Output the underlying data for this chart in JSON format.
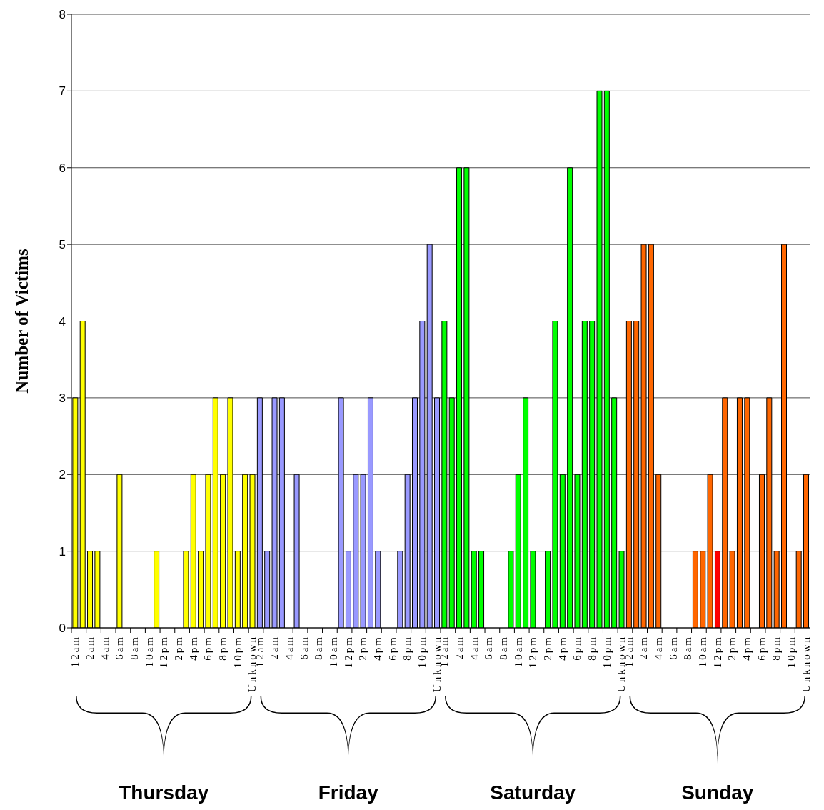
{
  "chart_data": {
    "type": "bar",
    "ylabel": "Number of Victims",
    "categories": [
      "12am",
      null,
      "2am",
      null,
      "4am",
      null,
      "6am",
      null,
      "8am",
      null,
      "10am",
      null,
      "12pm",
      null,
      "2pm",
      null,
      "4pm",
      null,
      "6pm",
      null,
      "8pm",
      null,
      "10pm",
      null,
      "Unknown",
      "12am",
      null,
      "2am",
      null,
      "4am",
      null,
      "6am",
      null,
      "8am",
      null,
      "10am",
      null,
      "12pm",
      null,
      "2pm",
      null,
      "4pm",
      null,
      "6pm",
      null,
      "8pm",
      null,
      "10pm",
      null,
      "Unknown",
      "12am",
      null,
      "2am",
      null,
      "4am",
      null,
      "6am",
      null,
      "8am",
      null,
      "10am",
      null,
      "12pm",
      null,
      "2pm",
      null,
      "4pm",
      null,
      "6pm",
      null,
      "8pm",
      null,
      "10pm",
      null,
      "Unknown",
      "12am",
      null,
      "2am",
      null,
      "4am",
      null,
      "6am",
      null,
      "8am",
      null,
      "10am",
      null,
      "12pm",
      null,
      "2pm",
      null,
      "4pm",
      null,
      "6pm",
      null,
      "8pm",
      null,
      "10pm",
      null,
      "Unknown"
    ],
    "values": [
      3,
      4,
      1,
      1,
      0,
      0,
      2,
      0,
      0,
      0,
      0,
      1,
      0,
      0,
      0,
      1,
      2,
      1,
      2,
      3,
      2,
      3,
      1,
      2,
      2,
      3,
      1,
      3,
      3,
      0,
      2,
      0,
      0,
      0,
      0,
      0,
      3,
      1,
      2,
      2,
      3,
      1,
      0,
      0,
      1,
      2,
      3,
      4,
      5,
      3,
      4,
      3,
      6,
      6,
      1,
      1,
      0,
      0,
      0,
      1,
      2,
      3,
      1,
      0,
      1,
      4,
      2,
      6,
      2,
      4,
      4,
      7,
      7,
      3,
      1,
      4,
      4,
      5,
      5,
      2,
      0,
      0,
      0,
      0,
      1,
      1,
      2,
      1,
      3,
      1,
      3,
      3,
      0,
      2,
      3,
      1,
      5,
      0,
      1,
      2
    ],
    "colors": [
      "#ffff00",
      "#ffff00",
      "#ffff00",
      "#ffff00",
      "#ffff00",
      "#ffff00",
      "#ffff00",
      "#ffff00",
      "#ffff00",
      "#ffff00",
      "#ffff00",
      "#ffff00",
      "#ffff00",
      "#ffff00",
      "#ffff00",
      "#ffff00",
      "#ffff00",
      "#ffff00",
      "#ffff00",
      "#ffff00",
      "#ffff00",
      "#ffff00",
      "#ffff00",
      "#ffff00",
      "#ffff00",
      "#9999ff",
      "#9999ff",
      "#9999ff",
      "#9999ff",
      "#9999ff",
      "#9999ff",
      "#9999ff",
      "#9999ff",
      "#9999ff",
      "#9999ff",
      "#9999ff",
      "#9999ff",
      "#9999ff",
      "#9999ff",
      "#9999ff",
      "#9999ff",
      "#9999ff",
      "#9999ff",
      "#9999ff",
      "#9999ff",
      "#9999ff",
      "#9999ff",
      "#9999ff",
      "#9999ff",
      "#9999ff",
      "#00ff00",
      "#00ff00",
      "#00ff00",
      "#00ff00",
      "#00ff00",
      "#00ff00",
      "#00ff00",
      "#00ff00",
      "#00ff00",
      "#00ff00",
      "#00ff00",
      "#00ff00",
      "#00ff00",
      "#00ff00",
      "#00ff00",
      "#00ff00",
      "#00ff00",
      "#00ff00",
      "#00ff00",
      "#00ff00",
      "#00ff00",
      "#00ff00",
      "#00ff00",
      "#00ff00",
      "#00ff00",
      "#ff6600",
      "#ff6600",
      "#ff6600",
      "#ff6600",
      "#ff6600",
      "#ff6600",
      "#ff6600",
      "#ff6600",
      "#ff6600",
      "#ff6600",
      "#ff6600",
      "#ff6600",
      "#ff0000",
      "#ff6600",
      "#ff6600",
      "#ff6600",
      "#ff6600",
      "#ff6600",
      "#ff6600",
      "#ff6600",
      "#ff6600",
      "#ff6600",
      "#ff6600",
      "#ff6600",
      "#ff6600"
    ],
    "ylim": [
      0,
      8
    ],
    "yticks": [
      0,
      1,
      2,
      3,
      4,
      5,
      6,
      7,
      8
    ],
    "grid": "y",
    "annotations": [
      "Thursday",
      "Friday",
      "Saturday",
      "Sunday"
    ]
  }
}
